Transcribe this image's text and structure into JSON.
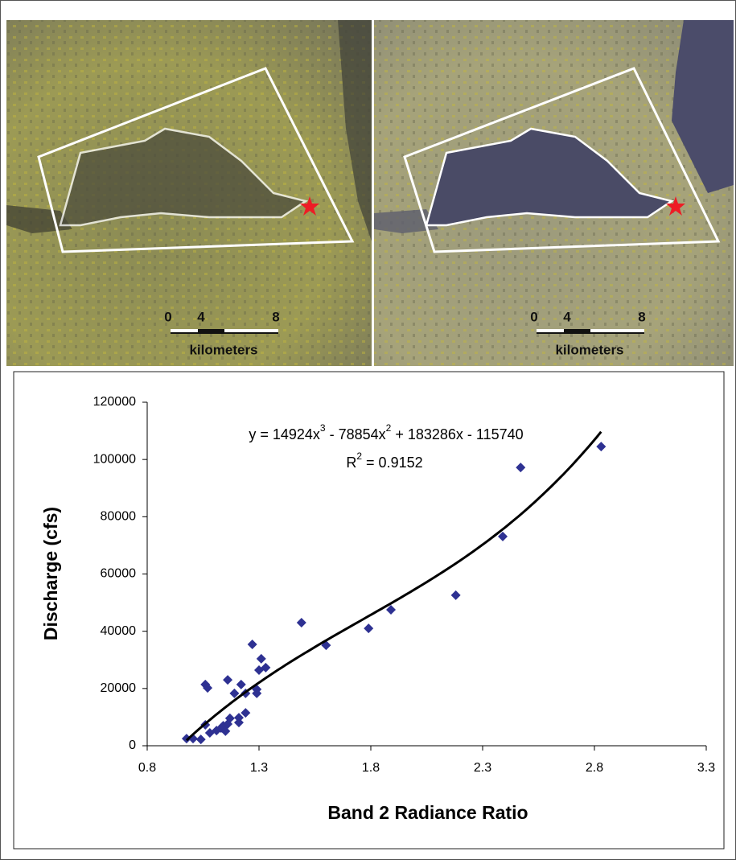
{
  "panels": [
    {
      "scale_ticks": [
        "0",
        "4",
        "8"
      ],
      "scale_unit": "kilometers"
    },
    {
      "scale_ticks": [
        "0",
        "4",
        "8"
      ],
      "scale_unit": "kilometers"
    }
  ],
  "chart_data": {
    "type": "scatter",
    "x_label": "Band 2 Radiance Ratio",
    "y_label": "Discharge (cfs)",
    "x": [
      0.976,
      1.005,
      1.04,
      1.06,
      1.06,
      1.07,
      1.08,
      1.11,
      1.13,
      1.14,
      1.15,
      1.16,
      1.16,
      1.17,
      1.19,
      1.21,
      1.21,
      1.22,
      1.24,
      1.24,
      1.27,
      1.29,
      1.29,
      1.3,
      1.31,
      1.33,
      1.49,
      1.6,
      1.79,
      1.89,
      2.18,
      2.39,
      2.47,
      2.83
    ],
    "values": [
      2500,
      2500,
      2200,
      7300,
      21400,
      20200,
      4500,
      5300,
      6200,
      7000,
      5100,
      7600,
      23000,
      9600,
      18300,
      8100,
      9800,
      21400,
      11500,
      18300,
      35400,
      18300,
      19700,
      26400,
      30400,
      27300,
      43000,
      35100,
      41000,
      47500,
      52600,
      73100,
      97200,
      104500
    ],
    "color": "#2e3192",
    "trendline": {
      "coefficients": [
        14924,
        -78854,
        183286,
        -115740
      ],
      "color": "#000000",
      "equation": [
        "y = 14924x",
        "3",
        " - 78854x",
        "2",
        " + 183286x - 115740"
      ],
      "r_squared": [
        "R",
        "2",
        " = 0.9152"
      ]
    },
    "xlim": [
      0.8,
      3.3
    ],
    "xticks": [
      0.8,
      1.3,
      1.8,
      2.3,
      2.8,
      3.3
    ],
    "ylim": [
      0,
      120000
    ],
    "yticks": [
      0,
      20000,
      40000,
      60000,
      80000,
      100000,
      120000
    ]
  }
}
